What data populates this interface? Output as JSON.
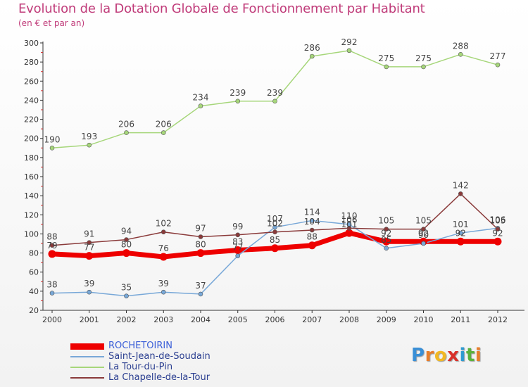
{
  "title": "Evolution de la Dotation Globale de Fonctionnement par Habitant",
  "subtitle": "(en € et par an)",
  "logo": {
    "text": "Proxiti",
    "letters": [
      "P",
      "r",
      "o",
      "x",
      "i",
      "t",
      "i"
    ],
    "colors": [
      "#3a8fd6",
      "#e87d2a",
      "#f2b823",
      "#d9312a",
      "#2f9bd0",
      "#5ab23c",
      "#e87d2a"
    ]
  },
  "chart_data": {
    "type": "line",
    "title": "Evolution de la Dotation Globale de Fonctionnement par Habitant",
    "subtitle": "(en € et par an)",
    "x": [
      "2000",
      "2001",
      "2002",
      "2003",
      "2004",
      "2005",
      "2006",
      "2007",
      "2008",
      "2009",
      "2010",
      "2011",
      "2012"
    ],
    "ylim": [
      20,
      300
    ],
    "yticks": [
      20,
      40,
      60,
      80,
      100,
      120,
      140,
      160,
      180,
      200,
      220,
      240,
      260,
      280,
      300
    ],
    "grid": false,
    "legend_position": "bottom-left",
    "series": [
      {
        "name": "ROCHETOIRIN",
        "color": "#ee0000",
        "width": 7,
        "values": [
          79,
          77,
          80,
          76,
          80,
          83,
          85,
          88,
          101,
          92,
          92,
          92,
          92
        ],
        "labels": [
          "79",
          "77",
          "80",
          "76",
          "80",
          "83",
          "85",
          "88",
          "101",
          "92",
          "92",
          "92",
          "92"
        ]
      },
      {
        "name": "Saint-Jean-de-Soudain",
        "color": "#78a8d8",
        "width": 1.5,
        "values": [
          38,
          39,
          35,
          39,
          37,
          77,
          107,
          114,
          110,
          85,
          90,
          101,
          106
        ],
        "labels": [
          "38",
          "39",
          "35",
          "39",
          "37",
          "77",
          "107",
          "114",
          "110",
          "85",
          "90",
          "101",
          "106"
        ]
      },
      {
        "name": "La Tour-du-Pin",
        "color": "#a6d67a",
        "width": 1.5,
        "values": [
          190,
          193,
          206,
          206,
          234,
          239,
          239,
          286,
          292,
          275,
          275,
          288,
          277
        ],
        "labels": [
          "190",
          "193",
          "206",
          "206",
          "234",
          "239",
          "239",
          "286",
          "292",
          "275",
          "275",
          "288",
          "277"
        ]
      },
      {
        "name": "La Chapelle-de-la-Tour",
        "color": "#8a3a3a",
        "width": 1.5,
        "values": [
          88,
          91,
          94,
          102,
          97,
          99,
          102,
          104,
          106,
          105,
          105,
          142,
          105
        ],
        "labels": [
          "88",
          "91",
          "94",
          "102",
          "97",
          "99",
          "102",
          "104",
          "106",
          "105",
          "105",
          "142",
          "105"
        ]
      }
    ]
  }
}
